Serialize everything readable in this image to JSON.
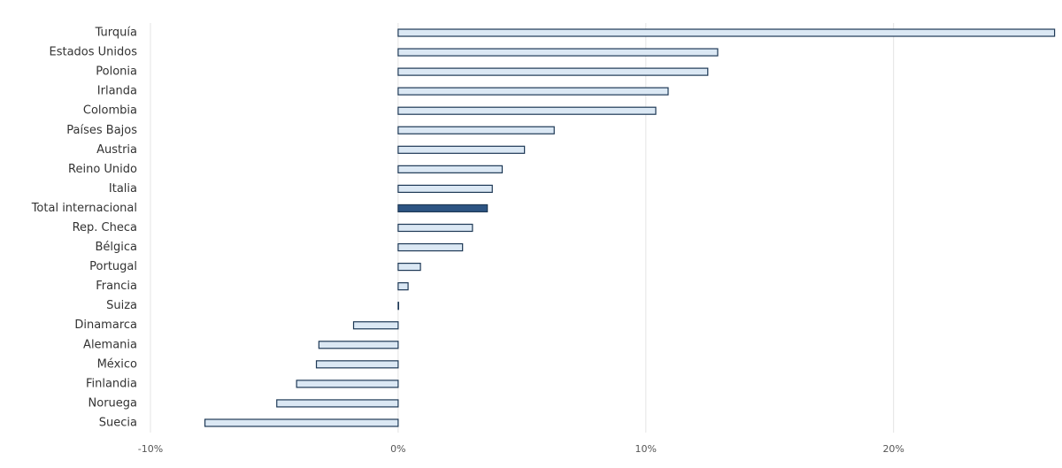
{
  "chart_data": {
    "type": "hbar",
    "categories": [
      "Turquía",
      "Estados Unidos",
      "Polonia",
      "Irlanda",
      "Colombia",
      "Países Bajos",
      "Austria",
      "Reino Unido",
      "Italia",
      "Total internacional",
      "Rep. Checa",
      "Bélgica",
      "Portugal",
      "Francia",
      "Suiza",
      "Dinamarca",
      "Alemania",
      "México",
      "Finlandia",
      "Noruega",
      "Suecia"
    ],
    "values": [
      26.5,
      12.9,
      12.5,
      10.9,
      10.4,
      6.3,
      5.1,
      4.2,
      3.8,
      3.6,
      3.0,
      2.6,
      0.9,
      0.4,
      0.0,
      -1.8,
      -3.2,
      -3.3,
      -4.1,
      -4.9,
      -7.8
    ],
    "colors": [
      "#dbe8f4",
      "#dbe8f4",
      "#dbe8f4",
      "#dbe8f4",
      "#dbe8f4",
      "#dbe8f4",
      "#dbe8f4",
      "#dbe8f4",
      "#dbe8f4",
      "#2d5483",
      "#dbe8f4",
      "#dbe8f4",
      "#dbe8f4",
      "#dbe8f4",
      "#dbe8f4",
      "#dbe8f4",
      "#dbe8f4",
      "#dbe8f4",
      "#dbe8f4",
      "#dbe8f4",
      "#dbe8f4"
    ],
    "border_color": "#1e3956",
    "xlim": [
      -10,
      26.8
    ],
    "xticks": [
      {
        "value": -10,
        "label": "-10%",
        "color": "#e0201b"
      },
      {
        "value": 0,
        "label": "0%",
        "color": "#555555"
      },
      {
        "value": 10,
        "label": "10%",
        "color": "#555555"
      },
      {
        "value": 20,
        "label": "20%",
        "color": "#555555"
      }
    ],
    "grid": true
  }
}
